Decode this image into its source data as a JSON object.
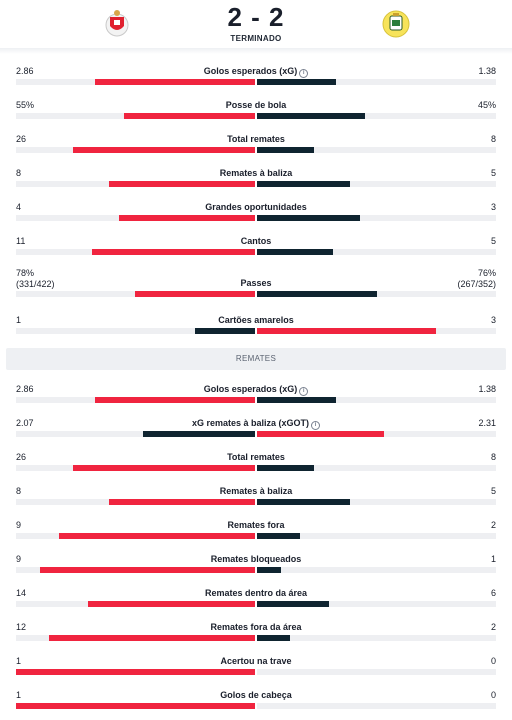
{
  "match": {
    "score": "2 - 2",
    "status": "TERMINADO",
    "home_logo": "benfica-crest",
    "away_logo": "arouca-crest"
  },
  "colors": {
    "winner": "#f0243f",
    "other": "#0f2430",
    "track": "#eeeff2"
  },
  "overview": [
    {
      "label": "Golos esperados (xG)",
      "info": true,
      "home": "2.86",
      "away": "1.38",
      "home_frac": 0.67,
      "away_frac": 0.33,
      "leader": "home"
    },
    {
      "label": "Posse de bola",
      "home": "55%",
      "away": "45%",
      "home_frac": 0.55,
      "away_frac": 0.45,
      "leader": "home"
    },
    {
      "label": "Total remates",
      "home": "26",
      "away": "8",
      "home_frac": 0.76,
      "away_frac": 0.24,
      "leader": "home"
    },
    {
      "label": "Remates à baliza",
      "home": "8",
      "away": "5",
      "home_frac": 0.61,
      "away_frac": 0.39,
      "leader": "home"
    },
    {
      "label": "Grandes oportunidades",
      "home": "4",
      "away": "3",
      "home_frac": 0.57,
      "away_frac": 0.43,
      "leader": "home"
    },
    {
      "label": "Cantos",
      "home": "11",
      "away": "5",
      "home_frac": 0.68,
      "away_frac": 0.32,
      "leader": "home"
    },
    {
      "label": "Passes",
      "home": "78%",
      "home_sub": "(331/422)",
      "away": "76%",
      "away_sub": "(267/352)",
      "home_frac": 0.5,
      "away_frac": 0.5,
      "leader": "home"
    },
    {
      "label": "Cartões amarelos",
      "home": "1",
      "away": "3",
      "home_frac": 0.25,
      "away_frac": 0.75,
      "leader": "away"
    }
  ],
  "shots_section": {
    "title": "REMATES",
    "rows": [
      {
        "label": "Golos esperados (xG)",
        "info": true,
        "home": "2.86",
        "away": "1.38",
        "home_frac": 0.67,
        "away_frac": 0.33,
        "leader": "home"
      },
      {
        "label": "xG remates à baliza (xGOT)",
        "info": true,
        "home": "2.07",
        "away": "2.31",
        "home_frac": 0.47,
        "away_frac": 0.53,
        "leader": "away"
      },
      {
        "label": "Total remates",
        "home": "26",
        "away": "8",
        "home_frac": 0.76,
        "away_frac": 0.24,
        "leader": "home"
      },
      {
        "label": "Remates à baliza",
        "home": "8",
        "away": "5",
        "home_frac": 0.61,
        "away_frac": 0.39,
        "leader": "home"
      },
      {
        "label": "Remates fora",
        "home": "9",
        "away": "2",
        "home_frac": 0.82,
        "away_frac": 0.18,
        "leader": "home"
      },
      {
        "label": "Remates bloqueados",
        "home": "9",
        "away": "1",
        "home_frac": 0.9,
        "away_frac": 0.1,
        "leader": "home"
      },
      {
        "label": "Remates dentro da área",
        "home": "14",
        "away": "6",
        "home_frac": 0.7,
        "away_frac": 0.3,
        "leader": "home"
      },
      {
        "label": "Remates fora da área",
        "home": "12",
        "away": "2",
        "home_frac": 0.86,
        "away_frac": 0.14,
        "leader": "home"
      },
      {
        "label": "Acertou na trave",
        "home": "1",
        "away": "0",
        "home_frac": 1.0,
        "away_frac": 0.0,
        "leader": "home"
      },
      {
        "label": "Golos de cabeça",
        "home": "1",
        "away": "0",
        "home_frac": 1.0,
        "away_frac": 0.0,
        "leader": "home"
      }
    ]
  }
}
